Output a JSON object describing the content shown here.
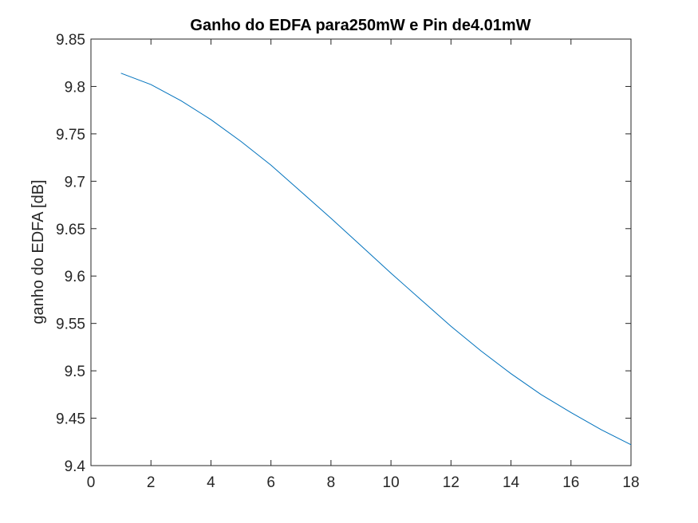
{
  "chart_data": {
    "type": "line",
    "title": "Ganho do EDFA para250mW e Pin de4.01mW",
    "xlabel": "",
    "ylabel": "ganho do EDFA [dB]",
    "xlim": [
      0,
      18
    ],
    "ylim": [
      9.4,
      9.85
    ],
    "xticks": [
      0,
      2,
      4,
      6,
      8,
      10,
      12,
      14,
      16,
      18
    ],
    "xtick_labels": [
      "0",
      "2",
      "4",
      "6",
      "8",
      "10",
      "12",
      "14",
      "16",
      "18"
    ],
    "yticks": [
      9.4,
      9.45,
      9.5,
      9.55,
      9.6,
      9.65,
      9.7,
      9.75,
      9.8,
      9.85
    ],
    "ytick_labels": [
      "9.4",
      "9.45",
      "9.5",
      "9.55",
      "9.6",
      "9.65",
      "9.7",
      "9.75",
      "9.8",
      "9.85"
    ],
    "grid": false,
    "series": [
      {
        "color": "#0072BD",
        "x": [
          1,
          2,
          3,
          4,
          5,
          6,
          7,
          8,
          9,
          10,
          11,
          12,
          13,
          14,
          15,
          16,
          17,
          18
        ],
        "y": [
          9.814,
          9.802,
          9.785,
          9.765,
          9.742,
          9.717,
          9.689,
          9.661,
          9.632,
          9.603,
          9.575,
          9.547,
          9.521,
          9.497,
          9.475,
          9.456,
          9.438,
          9.422
        ]
      }
    ]
  }
}
